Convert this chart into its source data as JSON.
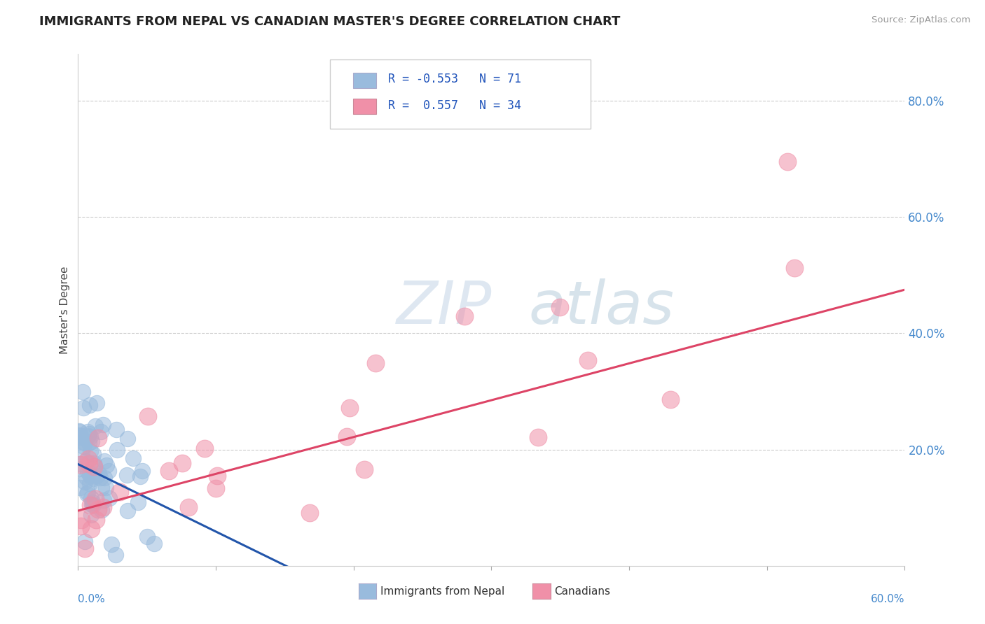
{
  "title": "IMMIGRANTS FROM NEPAL VS CANADIAN MASTER'S DEGREE CORRELATION CHART",
  "source_text": "Source: ZipAtlas.com",
  "ylabel": "Master's Degree",
  "legend_label1": "Immigrants from Nepal",
  "legend_label2": "Canadians",
  "r1": -0.553,
  "n1": 71,
  "r2": 0.557,
  "n2": 34,
  "color1": "#99bbdd",
  "color2": "#f090a8",
  "line_color1": "#2255aa",
  "line_color2": "#dd4466",
  "xmin": 0.0,
  "xmax": 0.6,
  "ymin": 0.0,
  "ymax": 0.88,
  "y_ticks": [
    0.2,
    0.4,
    0.6,
    0.8
  ],
  "y_tick_labels": [
    "20.0%",
    "40.0%",
    "60.0%",
    "80.0%"
  ],
  "watermark_zip": "ZIP",
  "watermark_atlas": "atlas",
  "background_color": "#ffffff",
  "title_fontsize": 13,
  "tick_color": "#4488cc",
  "grid_color": "#cccccc",
  "blue_line_x": [
    0.0,
    0.22
  ],
  "blue_line_y": [
    0.175,
    -0.08
  ],
  "pink_line_x": [
    0.0,
    0.6
  ],
  "pink_line_y": [
    0.095,
    0.475
  ]
}
